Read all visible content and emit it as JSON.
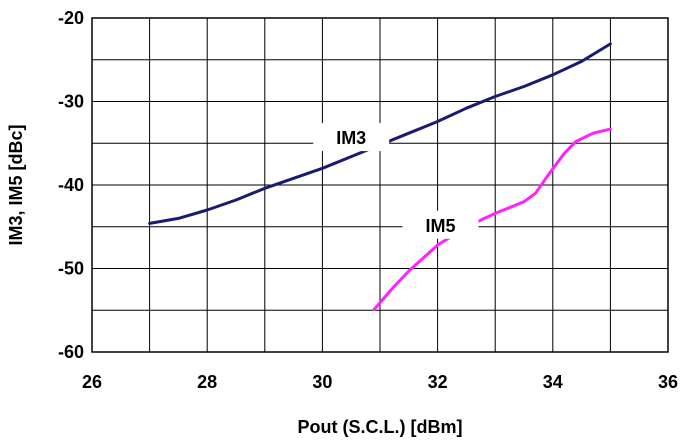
{
  "chart_data": {
    "type": "line",
    "xlabel": "Pout (S.C.L.) [dBm]",
    "ylabel": "IM3, IM5 [dBc]",
    "xlim": [
      26,
      36
    ],
    "ylim": [
      -60,
      -20
    ],
    "xticks": [
      "26",
      "28",
      "30",
      "32",
      "34",
      "36"
    ],
    "yticks": [
      "-20",
      "-30",
      "-40",
      "-50",
      "-60"
    ],
    "grid": true,
    "x_grid_step": 1,
    "y_grid_step": 5,
    "series": [
      {
        "name": "IM3",
        "color": "#1a1a6e",
        "points": [
          [
            27.0,
            -44.6
          ],
          [
            27.5,
            -44.0
          ],
          [
            28.0,
            -43.0
          ],
          [
            28.5,
            -41.8
          ],
          [
            29.0,
            -40.4
          ],
          [
            29.5,
            -39.2
          ],
          [
            30.0,
            -38.0
          ],
          [
            30.5,
            -36.6
          ],
          [
            31.0,
            -35.2
          ],
          [
            31.5,
            -33.8
          ],
          [
            32.0,
            -32.4
          ],
          [
            32.5,
            -30.8
          ],
          [
            33.0,
            -29.4
          ],
          [
            33.5,
            -28.2
          ],
          [
            34.0,
            -26.8
          ],
          [
            34.5,
            -25.2
          ],
          [
            35.0,
            -23.1
          ]
        ]
      },
      {
        "name": "IM5",
        "color": "#ff22ff",
        "points": [
          [
            30.9,
            -54.9
          ],
          [
            31.2,
            -52.5
          ],
          [
            31.5,
            -50.3
          ],
          [
            32.0,
            -47.2
          ],
          [
            32.5,
            -45.0
          ],
          [
            33.0,
            -43.4
          ],
          [
            33.5,
            -42.0
          ],
          [
            33.7,
            -41.0
          ],
          [
            33.9,
            -39.0
          ],
          [
            34.2,
            -36.2
          ],
          [
            34.4,
            -34.8
          ],
          [
            34.7,
            -33.8
          ],
          [
            35.0,
            -33.3
          ]
        ]
      }
    ]
  }
}
